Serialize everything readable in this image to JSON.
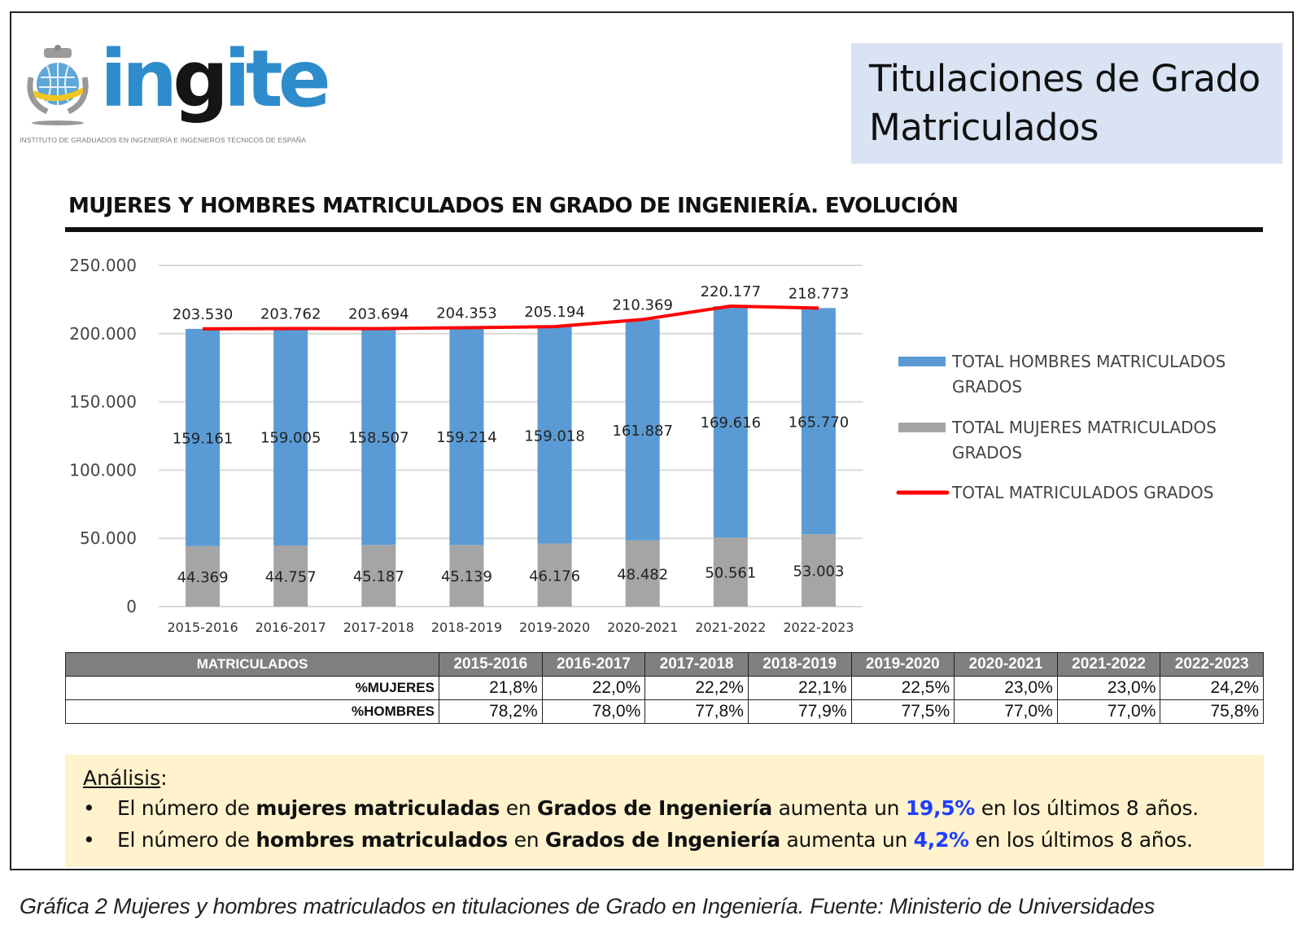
{
  "logo": {
    "wordmark_parts": [
      "in",
      "g",
      "ite"
    ],
    "wordmark": "ingite",
    "subtitle": "INSTITUTO DE GRADUADOS EN INGENIERÍA E INGENIEROS TÉCNICOS DE ESPAÑA",
    "icon": "crest-icon"
  },
  "header": {
    "title_line1": "Titulaciones de Grado",
    "title_line2": "Matriculados"
  },
  "section": {
    "title": "MUJERES Y HOMBRES MATRICULADOS EN GRADO DE INGENIERÍA. EVOLUCIÓN"
  },
  "chart_data": {
    "type": "bar",
    "stacked": true,
    "title": "MUJERES Y HOMBRES MATRICULADOS EN GRADO DE INGENIERÍA. EVOLUCIÓN",
    "xlabel": "",
    "ylabel": "",
    "ylim": [
      0,
      250000
    ],
    "yticks": [
      0,
      50000,
      100000,
      150000,
      200000,
      250000
    ],
    "ytick_labels": [
      "0",
      "50.000",
      "100.000",
      "150.000",
      "200.000",
      "250.000"
    ],
    "grid": true,
    "legend_position": "right",
    "categories": [
      "2015-2016",
      "2016-2017",
      "2017-2018",
      "2018-2019",
      "2019-2020",
      "2020-2021",
      "2021-2022",
      "2022-2023"
    ],
    "series": [
      {
        "name": "TOTAL MUJERES MATRICULADOS GRADOS",
        "kind": "bar",
        "color": "#a5a5a5",
        "values": [
          44369,
          44757,
          45187,
          45139,
          46176,
          48482,
          50561,
          53003
        ],
        "labels": [
          "44.369",
          "44.757",
          "45.187",
          "45.139",
          "46.176",
          "48.482",
          "50.561",
          "53.003"
        ]
      },
      {
        "name": "TOTAL HOMBRES MATRICULADOS GRADOS",
        "kind": "bar",
        "color": "#5b9bd5",
        "values": [
          159161,
          159005,
          158507,
          159214,
          159018,
          161887,
          169616,
          165770
        ],
        "labels": [
          "159.161",
          "159.005",
          "158.507",
          "159.214",
          "159.018",
          "161.887",
          "169.616",
          "165.770"
        ]
      },
      {
        "name": "TOTAL MATRICULADOS GRADOS",
        "kind": "line",
        "color": "#ff0000",
        "values": [
          203530,
          203762,
          203694,
          204353,
          205194,
          210369,
          220177,
          218773
        ],
        "labels": [
          "203.530",
          "203.762",
          "203.694",
          "204.353",
          "205.194",
          "210.369",
          "220.177",
          "218.773"
        ]
      }
    ],
    "legend": [
      {
        "line1": "TOTAL HOMBRES MATRICULADOS",
        "line2": "GRADOS",
        "color": "#5b9bd5",
        "kind": "bar"
      },
      {
        "line1": "TOTAL MUJERES MATRICULADOS",
        "line2": "GRADOS",
        "color": "#a5a5a5",
        "kind": "bar"
      },
      {
        "line1": "TOTAL MATRICULADOS GRADOS",
        "line2": "",
        "color": "#ff0000",
        "kind": "line"
      }
    ]
  },
  "table": {
    "header_label": "MATRICULADOS",
    "columns": [
      "2015-2016",
      "2016-2017",
      "2017-2018",
      "2018-2019",
      "2019-2020",
      "2020-2021",
      "2021-2022",
      "2022-2023"
    ],
    "rows": [
      {
        "label": "%MUJERES",
        "values": [
          "21,8%",
          "22,0%",
          "22,2%",
          "22,1%",
          "22,5%",
          "23,0%",
          "23,0%",
          "24,2%"
        ]
      },
      {
        "label": "%HOMBRES",
        "values": [
          "78,2%",
          "78,0%",
          "77,8%",
          "77,9%",
          "77,5%",
          "77,0%",
          "77,0%",
          "75,8%"
        ]
      }
    ]
  },
  "analysis": {
    "heading": "Análisis",
    "heading_suffix": ":",
    "bullet": "•",
    "items": [
      {
        "t1": "El número de ",
        "b1": "mujeres matriculadas",
        "t2": " en ",
        "b2": "Grados de Ingeniería",
        "t3": " aumenta un ",
        "hl": "19,5%",
        "t4": " en los últimos 8 años."
      },
      {
        "t1": "El número de ",
        "b1": "hombres matriculados",
        "t2": " en ",
        "b2": "Grados de Ingeniería",
        "t3": " aumenta un ",
        "hl": "4,2%",
        "t4": " en los últimos 8 años."
      }
    ],
    "highlight_color": "#1f3fff"
  },
  "caption": "Gráfica 2 Mujeres y hombres matriculados en titulaciones de Grado en Ingeniería. Fuente: Ministerio de Universidades"
}
